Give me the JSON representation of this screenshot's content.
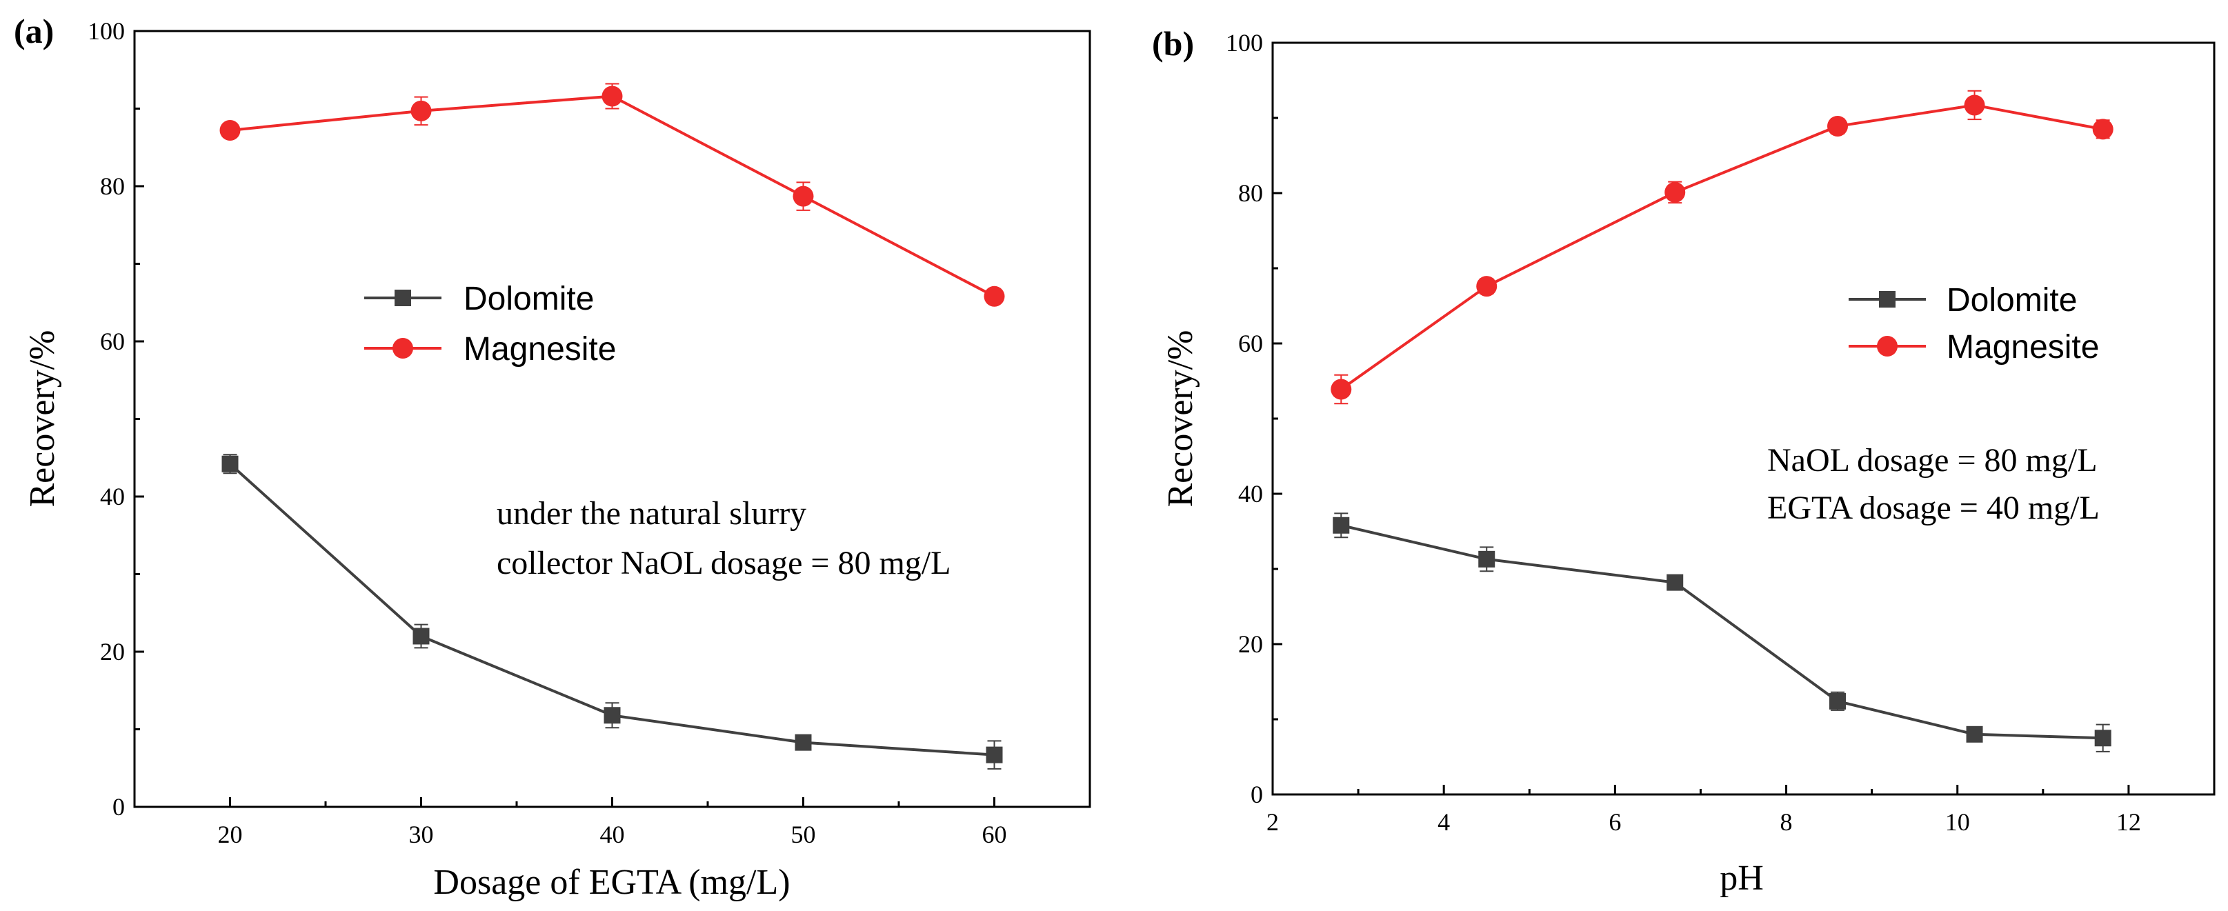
{
  "chart_data": [
    {
      "type": "line",
      "panel_label": "(a)",
      "xlabel": "Dosage of   EGTA (mg/L)",
      "ylabel": "Recovery/%",
      "xlim": [
        15,
        65
      ],
      "ylim": [
        0,
        100
      ],
      "xticks": [
        20,
        30,
        40,
        50,
        60
      ],
      "yticks": [
        0,
        20,
        40,
        60,
        80,
        100
      ],
      "legend_position": "center",
      "annotations": [
        "under the natural slurry",
        "collector NaOL dosage = 80 mg/L"
      ],
      "series": [
        {
          "name": "Dolomite",
          "color": "#404040",
          "marker": "square",
          "x": [
            20,
            30,
            40,
            50,
            60
          ],
          "y": [
            44.2,
            22.0,
            11.8,
            8.3,
            6.7
          ],
          "err": [
            1.2,
            1.5,
            1.6,
            0.8,
            1.8
          ]
        },
        {
          "name": "Magnesite",
          "color": "#ee2a2a",
          "marker": "circle",
          "x": [
            20,
            30,
            40,
            50,
            60
          ],
          "y": [
            87.2,
            89.7,
            91.6,
            78.7,
            65.8
          ],
          "err": [
            0.8,
            1.8,
            1.6,
            1.8,
            0.8
          ]
        }
      ]
    },
    {
      "type": "line",
      "panel_label": "(b)",
      "xlabel": "pH",
      "ylabel": "Recovery/%",
      "xlim": [
        2,
        13
      ],
      "ylim": [
        0,
        100
      ],
      "xticks": [
        2,
        4,
        6,
        8,
        10,
        12
      ],
      "yticks": [
        0,
        20,
        40,
        60,
        80,
        100
      ],
      "legend_position": "right",
      "annotations": [
        "NaOL dosage = 80 mg/L",
        "EGTA dosage = 40 mg/L"
      ],
      "series": [
        {
          "name": "Dolomite",
          "color": "#404040",
          "marker": "square",
          "x": [
            2.8,
            4.5,
            6.7,
            8.6,
            10.2,
            11.7
          ],
          "y": [
            35.8,
            31.3,
            28.2,
            12.4,
            8.0,
            7.5
          ],
          "err": [
            1.6,
            1.6,
            0.8,
            1.2,
            0.6,
            1.8
          ]
        },
        {
          "name": "Magnesite",
          "color": "#ee2a2a",
          "marker": "circle",
          "x": [
            2.8,
            4.5,
            6.7,
            8.6,
            10.2,
            11.7
          ],
          "y": [
            53.9,
            67.6,
            80.1,
            88.9,
            91.7,
            88.5
          ],
          "err": [
            1.9,
            1.0,
            1.4,
            1.0,
            1.9,
            1.2
          ]
        }
      ]
    }
  ]
}
